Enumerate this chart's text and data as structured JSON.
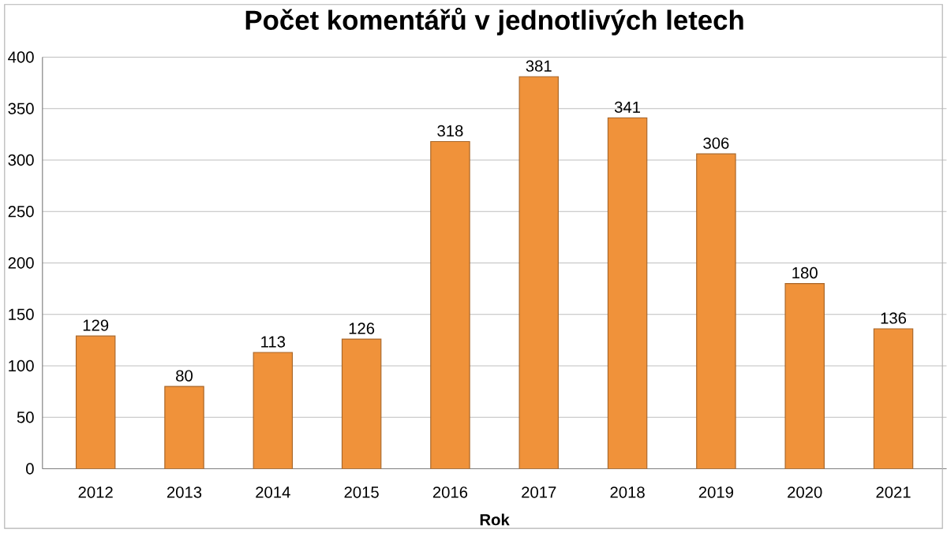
{
  "chart_data": {
    "type": "bar",
    "title": "Počet komentářů v jednotlivých letech",
    "xlabel": "Rok",
    "categories": [
      "2012",
      "2013",
      "2014",
      "2015",
      "2016",
      "2017",
      "2018",
      "2019",
      "2020",
      "2021"
    ],
    "values": [
      129,
      80,
      113,
      126,
      318,
      381,
      341,
      306,
      180,
      136
    ],
    "color": "#f0923a",
    "ylim": [
      0,
      400
    ],
    "yticks": [
      0,
      50,
      100,
      150,
      200,
      250,
      300,
      350,
      400
    ],
    "grid": "y",
    "data_labels": true
  }
}
